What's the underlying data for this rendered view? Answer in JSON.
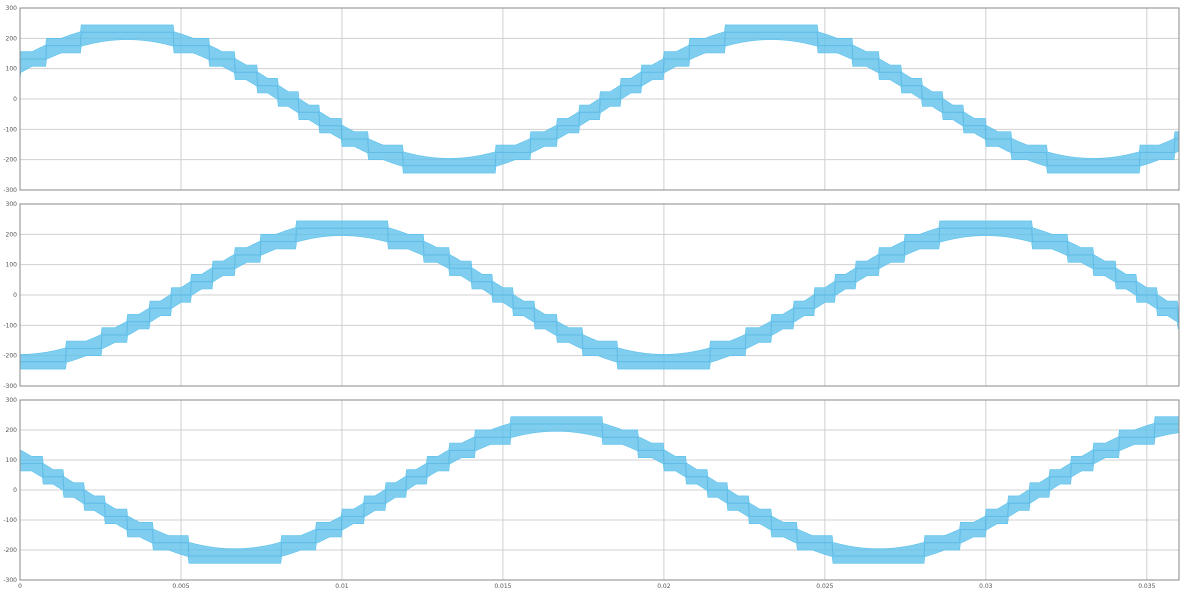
{
  "chart_data": [
    {
      "type": "line",
      "title": "",
      "xlabel": "",
      "ylabel": "",
      "xlim": [
        0,
        0.036
      ],
      "ylim": [
        -300,
        300
      ],
      "grid": true,
      "xticks": [
        0,
        0.005,
        0.01,
        0.015,
        0.02,
        0.025,
        0.03,
        0.035
      ],
      "xtick_labels": [
        "",
        "",
        "",
        "",
        "",
        "",
        "",
        ""
      ],
      "yticks": [
        300,
        200,
        100,
        0,
        -100,
        -200,
        -300
      ],
      "ytick_labels": [
        "300",
        "200",
        "100",
        "0",
        "-100",
        "-200",
        "-300"
      ],
      "series": [
        {
          "name": "",
          "color": "#5bc0eb",
          "waveform": "multilevel-staircase",
          "amplitude": 220,
          "levels": 11,
          "frequency_hz": 50,
          "phase_deg": 30
        }
      ]
    },
    {
      "type": "line",
      "title": "",
      "xlabel": "",
      "ylabel": "",
      "xlim": [
        0,
        0.036
      ],
      "ylim": [
        -300,
        300
      ],
      "grid": true,
      "xticks": [
        0,
        0.005,
        0.01,
        0.015,
        0.02,
        0.025,
        0.03,
        0.035
      ],
      "xtick_labels": [
        "",
        "",
        "",
        "",
        "",
        "",
        "",
        ""
      ],
      "yticks": [
        300,
        200,
        100,
        0,
        -100,
        -200,
        -300
      ],
      "ytick_labels": [
        "300",
        "200",
        "100",
        "0",
        "-100",
        "-200",
        "-300"
      ],
      "series": [
        {
          "name": "",
          "color": "#5bc0eb",
          "waveform": "multilevel-staircase",
          "amplitude": 220,
          "levels": 11,
          "frequency_hz": 50,
          "phase_deg": -90
        }
      ]
    },
    {
      "type": "line",
      "title": "",
      "xlabel": "",
      "ylabel": "",
      "xlim": [
        0,
        0.036
      ],
      "ylim": [
        -300,
        300
      ],
      "grid": true,
      "xticks": [
        0,
        0.005,
        0.01,
        0.015,
        0.02,
        0.025,
        0.03,
        0.035
      ],
      "xtick_labels": [
        "0",
        "0.005",
        "0.01",
        "0.015",
        "0.02",
        "0.025",
        "0.03",
        "0.035"
      ],
      "yticks": [
        300,
        200,
        100,
        0,
        -100,
        -200,
        -300
      ],
      "ytick_labels": [
        "300",
        "200",
        "100",
        "0",
        "-100",
        "-200",
        "-300"
      ],
      "series": [
        {
          "name": "",
          "color": "#5bc0eb",
          "waveform": "multilevel-staircase",
          "amplitude": 220,
          "levels": 11,
          "frequency_hz": 50,
          "phase_deg": 150
        }
      ]
    }
  ]
}
